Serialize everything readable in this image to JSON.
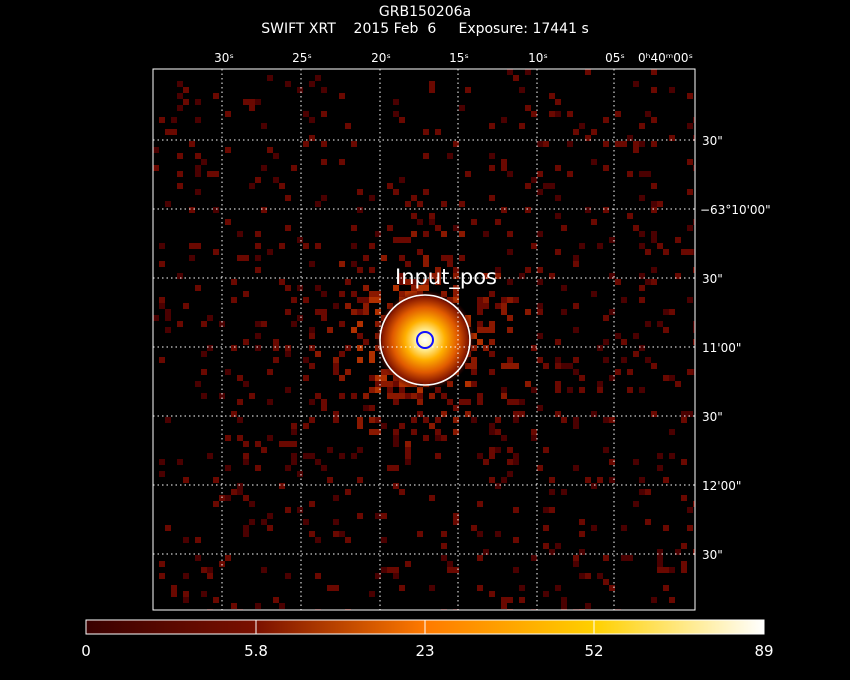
{
  "title": "GRB150206a",
  "subtitle": "SWIFT XRT    2015 Feb  6     Exposure: 17441 s",
  "ra_ticks": [
    "30ˢ",
    "25ˢ",
    "20ˢ",
    "15ˢ",
    "10ˢ",
    "05ˢ",
    "0ʰ40ᵐ00ˢ"
  ],
  "dec_ticks": [
    "30\"",
    "−63°10'00\"",
    "30\"",
    "11'00\"",
    "30\"",
    "12'00\"",
    "30\""
  ],
  "source_label": "Input_pos",
  "colorbar": {
    "tick_labels": [
      "0",
      "5.8",
      "23",
      "52",
      "89"
    ],
    "min": 0,
    "max": 89
  },
  "colors": {
    "background": "#000000",
    "source_circle": "#ffffff",
    "position_marker": "#0000ff",
    "grid": "#ffffff"
  }
}
